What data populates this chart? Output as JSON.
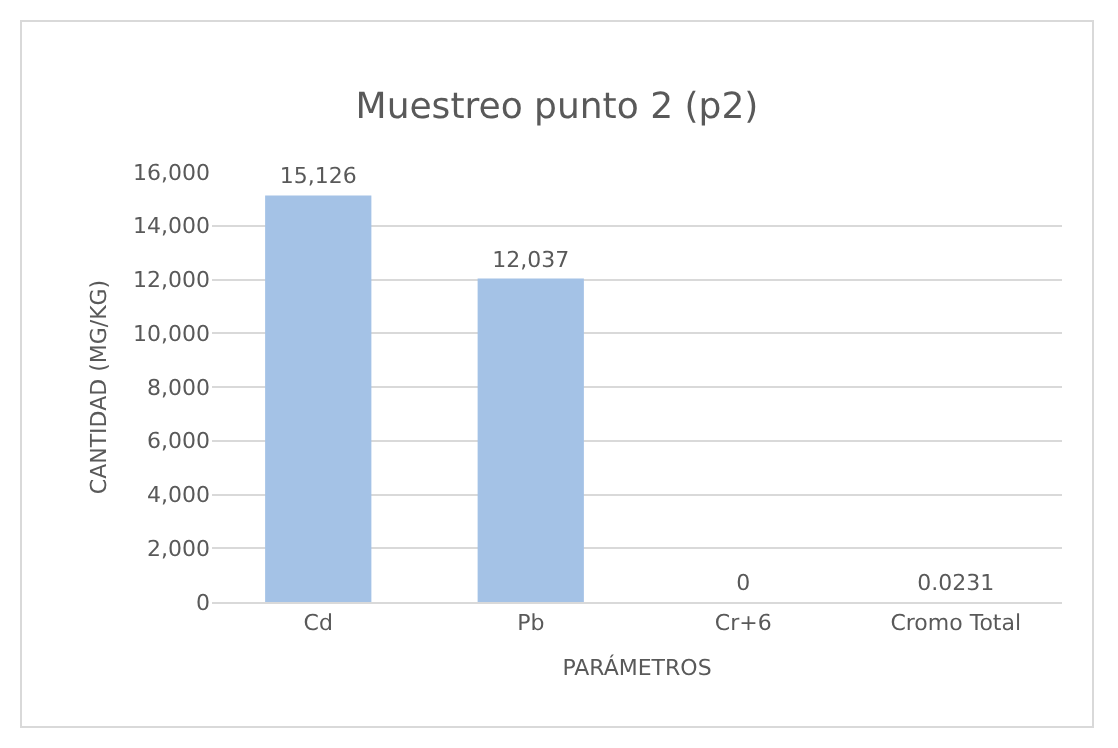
{
  "chart_data": {
    "type": "bar",
    "title": "Muestreo punto 2 (p2)",
    "xlabel": "PARÁMETROS",
    "ylabel": "CANTIDAD (MG/KG)",
    "categories": [
      "Cd",
      "Pb",
      "Cr+6",
      "Cromo Total"
    ],
    "values": [
      15126,
      12037,
      0,
      0.0231
    ],
    "value_labels": [
      "15,126",
      "12,037",
      "0",
      "0.0231"
    ],
    "color": "#a4c2e6",
    "ylim": [
      0,
      16000
    ],
    "yticks": [
      {
        "value": 0,
        "label": "0"
      },
      {
        "value": 2000,
        "label": "2,000"
      },
      {
        "value": 4000,
        "label": "4,000"
      },
      {
        "value": 6000,
        "label": "6,000"
      },
      {
        "value": 8000,
        "label": "8,000"
      },
      {
        "value": 10000,
        "label": "10,000"
      },
      {
        "value": 12000,
        "label": "12,000"
      },
      {
        "value": 14000,
        "label": "14,000"
      },
      {
        "value": 16000,
        "label": "16,000"
      }
    ],
    "grid": "y"
  }
}
